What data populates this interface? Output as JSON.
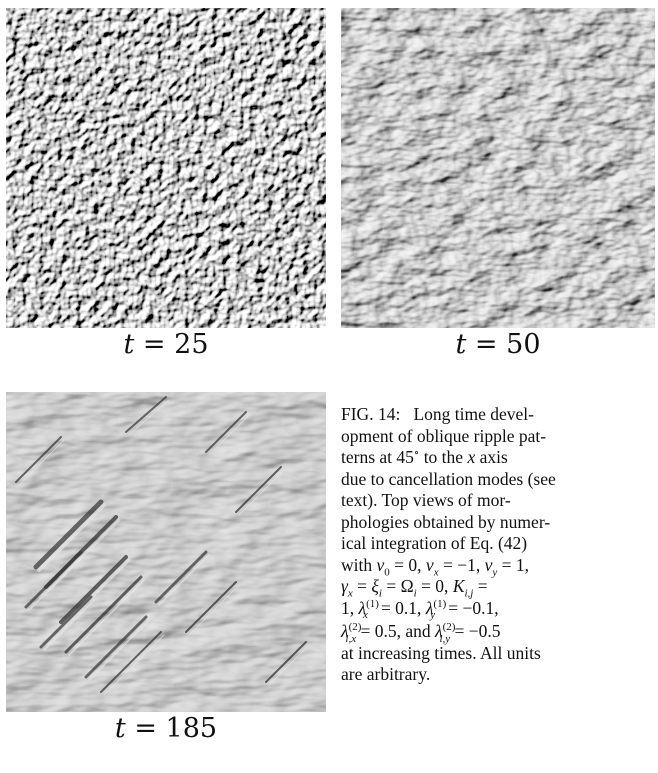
{
  "panels": [
    {
      "label": "t = 25",
      "t_value": "25",
      "texture": "fine-isotropic-ripples"
    },
    {
      "label": "t = 50",
      "t_value": "50",
      "texture": "coarsened-chevron-ripples"
    },
    {
      "label": "t = 185",
      "t_value": "185",
      "texture": "oblique-45-degree-ripples"
    }
  ],
  "caption": {
    "lead": "FIG. 14:",
    "body": "Long time development of oblique ripple patterns at 45° to the x axis due to cancellation modes (see text). Top views of morphologies obtained by numerical integration of Eq. (42) with v0 = 0, νx = −1, νy = 1, γx = ξi = Ωi = 0, Ki,j = 1, λx(1) = 0.1, λy(1) = −0.1, λi,x(2) = 0.5, and λi,y(2) = −0.5 at increasing times. All units are arbitrary.",
    "t1": "Long time devel-",
    "t2": "opment of oblique ripple pat-",
    "t3a": "terns at 45",
    "t3b": "to the",
    "t3c": "x",
    "t3d": "axis",
    "t4": "due to cancellation modes (see",
    "t5": "text).   Top views of mor-",
    "t6": "phologies obtained by numer-",
    "t7": "ical integration of Eq. (42)",
    "t8": "with",
    "v0": "v",
    "v0sub": "0",
    "eq0": " = 0, ",
    "nux": "ν",
    "nuxsub": "x",
    "eqnux": " = −1, ",
    "nuy": "ν",
    "nuysub": "y",
    "eqnuy": " = 1,",
    "gx": "γ",
    "gxsub": "x",
    "eqg": " = ",
    "xi": "ξ",
    "xisub": "i",
    "eqxi": " = ",
    "om": "Ω",
    "omsub": "i",
    "eqom": " = 0, ",
    "K": "K",
    "Ksub": "i,j",
    "eqK": " =",
    "one": "1,",
    "lam": "λ",
    "lx1sup": "(1)",
    "lx1sub": "x",
    "eqlx1": " = 0.1, ",
    "ly1sup": "(1)",
    "ly1sub": "y",
    "eqly1": " = −0.1,",
    "lx2sup": "(2)",
    "lx2sub": "i,x",
    "eqlx2": " = 0.5, and ",
    "ly2sup": "(2)",
    "ly2sub": "i,y",
    "eqly2": " = −0.5",
    "t12": "at increasing times. All units",
    "t13": "are arbitrary."
  }
}
